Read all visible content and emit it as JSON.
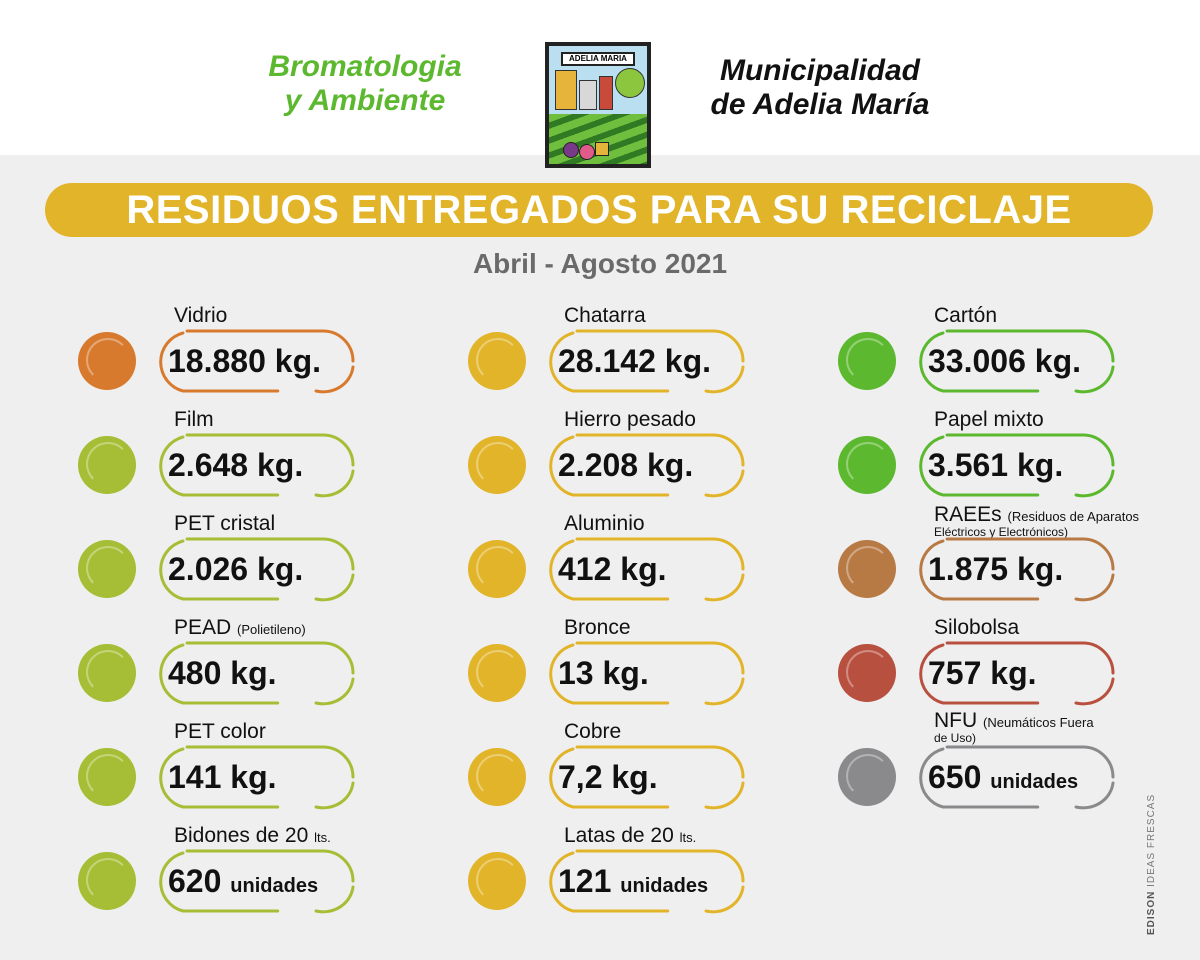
{
  "header": {
    "dept_line1": "Bromatologia",
    "dept_line2": "y Ambiente",
    "muni_line1": "Municipalidad",
    "muni_line2": "de Adelia María",
    "logo_text": "ADELIA MARIA"
  },
  "title": "RESIDUOS ENTREGADOS PARA SU RECICLAJE",
  "subtitle": "Abril - Agosto 2021",
  "colors": {
    "orange": "#d87a2e",
    "lime": "#a5be35",
    "yellow": "#e2b42a",
    "green": "#5cb82e",
    "brown": "#b87a45",
    "red": "#b85040",
    "gray": "#8a8a8c",
    "title_bar": "#e2b42a"
  },
  "items": {
    "vidrio": {
      "label": "Vidrio",
      "value": "18.880 kg."
    },
    "film": {
      "label": "Film",
      "value": "2.648 kg."
    },
    "pet_cristal": {
      "label": "PET cristal",
      "value": "2.026 kg."
    },
    "pead": {
      "label": "PEAD",
      "label_note": "(Polietileno)",
      "value": "480 kg."
    },
    "pet_color": {
      "label": "PET color",
      "value": "141 kg."
    },
    "bidones": {
      "label": "Bidones de 20",
      "label_note": "lts.",
      "value": "620",
      "unit": "unidades"
    },
    "chatarra": {
      "label": "Chatarra",
      "value": "28.142 kg."
    },
    "hierro": {
      "label": "Hierro pesado",
      "value": "2.208 kg."
    },
    "aluminio": {
      "label": "Aluminio",
      "value": "412 kg."
    },
    "bronce": {
      "label": "Bronce",
      "value": "13 kg."
    },
    "cobre": {
      "label": "Cobre",
      "value": "7,2 kg."
    },
    "latas": {
      "label": "Latas de 20",
      "label_note": "lts.",
      "value": "121",
      "unit": "unidades"
    },
    "carton": {
      "label": "Cartón",
      "value": "33.006 kg."
    },
    "papel": {
      "label": "Papel mixto",
      "value": "3.561 kg."
    },
    "raees": {
      "label": "RAEEs",
      "label_note": "(Residuos de Aparatos",
      "label_note2": "Eléctricos y Electrónicos)",
      "value": "1.875 kg."
    },
    "silobolsa": {
      "label": "Silobolsa",
      "value": "757 kg."
    },
    "nfu": {
      "label": "NFU",
      "label_note": "(Neumáticos Fuera",
      "label_note2": "de Uso)",
      "value": "650",
      "unit": "unidades"
    }
  },
  "credit": {
    "brand": "EDISON",
    "tagline": "IDEAS FRESCAS"
  }
}
